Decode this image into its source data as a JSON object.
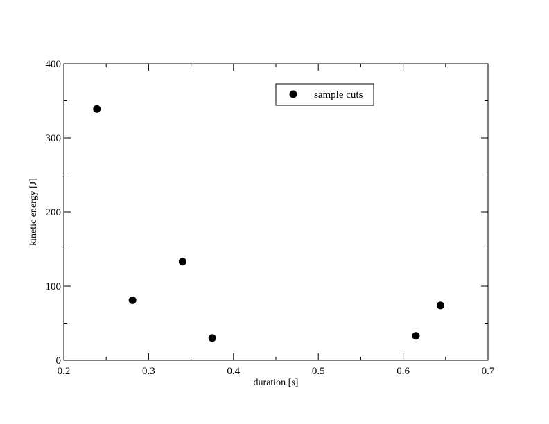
{
  "chart_data": {
    "type": "scatter",
    "xlabel": "duration [s]",
    "ylabel": "kinetic energy [J]",
    "xlim": [
      0.2,
      0.7
    ],
    "ylim": [
      0,
      400
    ],
    "x_ticks": [
      "0.2",
      "0.3",
      "0.4",
      "0.5",
      "0.6",
      "0.7"
    ],
    "y_ticks": [
      "0",
      "100",
      "200",
      "300",
      "400"
    ],
    "x_tick_values": [
      0.2,
      0.3,
      0.4,
      0.5,
      0.6,
      0.7
    ],
    "y_tick_values": [
      0,
      100,
      200,
      300,
      400
    ],
    "grid": false,
    "legend_position": "top-right",
    "series": [
      {
        "name": "sample cuts",
        "color": "#000000",
        "marker": "circle",
        "x": [
          0.239,
          0.281,
          0.34,
          0.375,
          0.615,
          0.644
        ],
        "y": [
          339,
          81,
          133,
          30,
          33,
          74
        ]
      }
    ]
  }
}
